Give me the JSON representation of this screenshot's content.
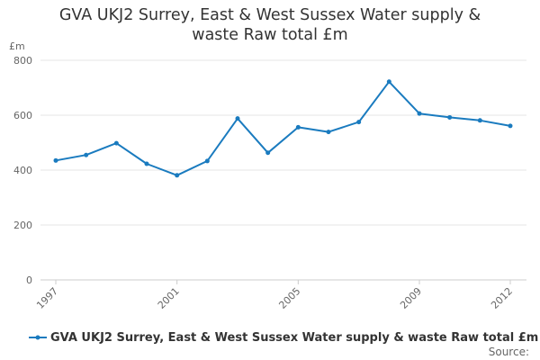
{
  "chart_data": {
    "type": "line",
    "title_line1": "GVA UKJ2 Surrey, East & West Sussex Water supply &",
    "title_line2": "waste Raw total £m",
    "ylabel": "£m",
    "xlabel": "",
    "ylim": [
      0,
      800
    ],
    "yticks": [
      "0",
      "200",
      "400",
      "600",
      "800"
    ],
    "xlim": [
      1997,
      2012
    ],
    "xticks": [
      "1997",
      "2001",
      "2005",
      "2009",
      "2012"
    ],
    "grid": true,
    "legend_position": "bottom",
    "color": "#1a7bbf",
    "series": [
      {
        "name": "GVA UKJ2 Surrey, East & West Sussex Water supply & waste Raw total £m",
        "x": [
          1997,
          1998,
          1999,
          2000,
          2001,
          2002,
          2003,
          2004,
          2005,
          2006,
          2007,
          2008,
          2009,
          2010,
          2011,
          2012
        ],
        "values": [
          435,
          455,
          498,
          423,
          381,
          433,
          588,
          463,
          556,
          539,
          575,
          722,
          606,
          592,
          581,
          561
        ]
      }
    ]
  },
  "source": "Source:"
}
